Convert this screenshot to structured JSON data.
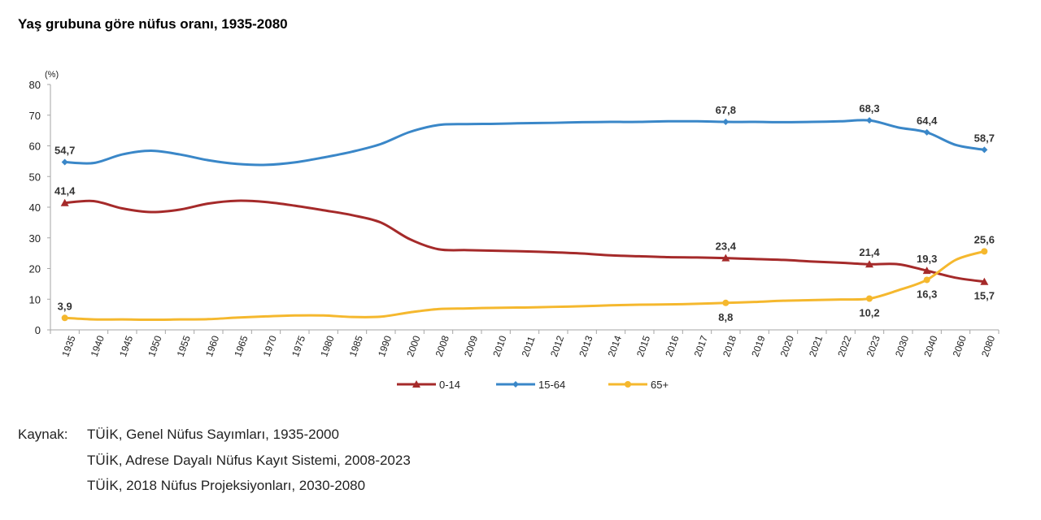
{
  "chart_data": {
    "type": "line",
    "title": "Yaş grubuna göre nüfus oranı, 1935-2080",
    "ylabel": "(%)",
    "xlabel": "",
    "ylim": [
      0,
      80
    ],
    "yticks": [
      0,
      10,
      20,
      30,
      40,
      50,
      60,
      70,
      80
    ],
    "grid": false,
    "legend_position": "bottom",
    "categories": [
      "1935",
      "1940",
      "1945",
      "1950",
      "1955",
      "1960",
      "1965",
      "1970",
      "1975",
      "1980",
      "1985",
      "1990",
      "2000",
      "2008",
      "2009",
      "2010",
      "2011",
      "2012",
      "2013",
      "2014",
      "2015",
      "2016",
      "2017",
      "2018",
      "2019",
      "2020",
      "2021",
      "2022",
      "2023",
      "2030",
      "2040",
      "2060",
      "2080"
    ],
    "series": [
      {
        "name": "0-14",
        "color": "#a52a2a",
        "marker": "triangle",
        "values": [
          41.4,
          42.0,
          39.6,
          38.4,
          39.2,
          41.2,
          42.1,
          41.7,
          40.5,
          39.0,
          37.4,
          35.0,
          29.6,
          26.3,
          26.0,
          25.8,
          25.6,
          25.3,
          24.9,
          24.3,
          24.0,
          23.7,
          23.6,
          23.4,
          23.1,
          22.8,
          22.3,
          21.9,
          21.4,
          21.4,
          19.3,
          17.0,
          15.7
        ],
        "labels": [
          {
            "category": "1935",
            "text": "41,4",
            "position": "above"
          },
          {
            "category": "2018",
            "text": "23,4",
            "position": "above"
          },
          {
            "category": "2023",
            "text": "21,4",
            "position": "above"
          },
          {
            "category": "2040",
            "text": "19,3",
            "position": "above"
          },
          {
            "category": "2080",
            "text": "15,7",
            "position": "below"
          }
        ]
      },
      {
        "name": "15-64",
        "color": "#3a87c8",
        "marker": "diamond",
        "values": [
          54.7,
          54.4,
          57.2,
          58.4,
          57.2,
          55.3,
          54.1,
          53.8,
          54.6,
          56.2,
          58.1,
          60.6,
          64.5,
          66.8,
          67.1,
          67.2,
          67.4,
          67.5,
          67.7,
          67.8,
          67.8,
          68.0,
          68.0,
          67.8,
          67.8,
          67.7,
          67.8,
          68.0,
          68.3,
          66.0,
          64.4,
          60.3,
          58.7
        ],
        "labels": [
          {
            "category": "1935",
            "text": "54,7",
            "position": "above"
          },
          {
            "category": "2018",
            "text": "67,8",
            "position": "above"
          },
          {
            "category": "2023",
            "text": "68,3",
            "position": "above"
          },
          {
            "category": "2040",
            "text": "64,4",
            "position": "above"
          },
          {
            "category": "2080",
            "text": "58,7",
            "position": "above"
          }
        ]
      },
      {
        "name": "65+",
        "color": "#f5b82e",
        "marker": "circle",
        "values": [
          3.9,
          3.4,
          3.4,
          3.3,
          3.4,
          3.5,
          4.0,
          4.4,
          4.7,
          4.7,
          4.2,
          4.3,
          5.7,
          6.8,
          7.0,
          7.2,
          7.3,
          7.5,
          7.7,
          8.0,
          8.2,
          8.3,
          8.5,
          8.8,
          9.1,
          9.5,
          9.7,
          9.9,
          10.2,
          12.9,
          16.3,
          22.8,
          25.6
        ],
        "labels": [
          {
            "category": "1935",
            "text": "3,9",
            "position": "above"
          },
          {
            "category": "2018",
            "text": "8,8",
            "position": "below"
          },
          {
            "category": "2023",
            "text": "10,2",
            "position": "below"
          },
          {
            "category": "2040",
            "text": "16,3",
            "position": "below"
          },
          {
            "category": "2080",
            "text": "25,6",
            "position": "above"
          }
        ]
      }
    ]
  },
  "source": {
    "label": "Kaynak:",
    "lines": [
      "TÜİK, Genel Nüfus Sayımları, 1935-2000",
      "TÜİK, Adrese Dayalı Nüfus Kayıt Sistemi, 2008-2023",
      "TÜİK, 2018 Nüfus Projeksiyonları, 2030-2080"
    ]
  }
}
